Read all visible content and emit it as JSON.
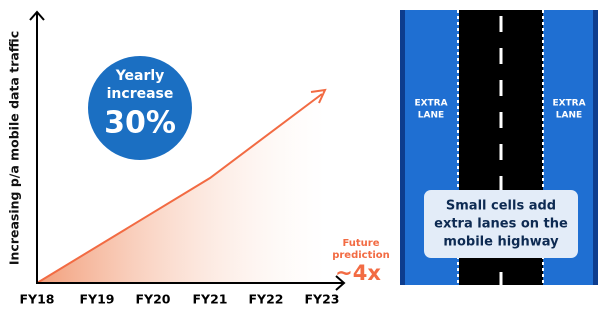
{
  "chart": {
    "y_axis_label": "Increasing p/a mobile data traffic",
    "x_labels": [
      "FY18",
      "FY19",
      "FY20",
      "FY21",
      "FY22",
      "FY23"
    ],
    "badge": {
      "lines": [
        "Yearly",
        "increase"
      ],
      "value": "30%"
    },
    "prediction": {
      "label_lines": [
        "Future",
        "prediction"
      ],
      "value": "~4x"
    }
  },
  "road": {
    "lane_labels": [
      [
        "EXTRA",
        "LANE"
      ],
      [
        "EXTRA",
        "LANE"
      ]
    ],
    "caption_lines": [
      "Small cells add",
      "extra lanes on the",
      "mobile highway"
    ]
  }
}
